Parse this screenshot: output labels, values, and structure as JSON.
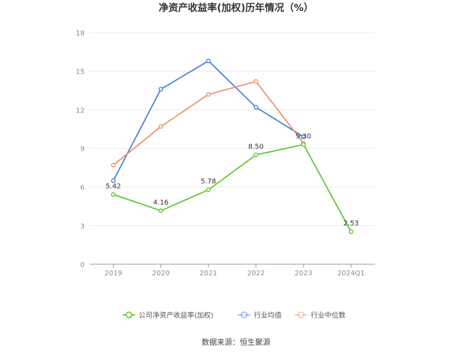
{
  "chart_data": {
    "type": "line",
    "title": "净资产收益率(加权)历年情况（%）",
    "categories": [
      "2019",
      "2020",
      "2021",
      "2022",
      "2023",
      "2024Q1"
    ],
    "ylim": [
      0,
      18
    ],
    "yticks": [
      0,
      3,
      6,
      9,
      12,
      15,
      18
    ],
    "grid": true,
    "legend_position": "bottom",
    "series": [
      {
        "name": "公司净资产收益率(加权)",
        "color": "#5cc72e",
        "values": [
          5.42,
          4.16,
          5.78,
          8.5,
          9.3,
          2.53
        ],
        "labels": [
          "5.42",
          "4.16",
          "5.78",
          "8.50",
          "9.30",
          "2.53"
        ]
      },
      {
        "name": "行业均值",
        "color": "#4a7fdc",
        "values": [
          6.5,
          13.6,
          15.8,
          12.2,
          9.9,
          null
        ]
      },
      {
        "name": "行业中位数",
        "color": "#f0906a",
        "values": [
          7.7,
          10.7,
          13.2,
          14.2,
          9.4,
          null
        ]
      }
    ]
  },
  "source": "数据来源：恒生聚源"
}
